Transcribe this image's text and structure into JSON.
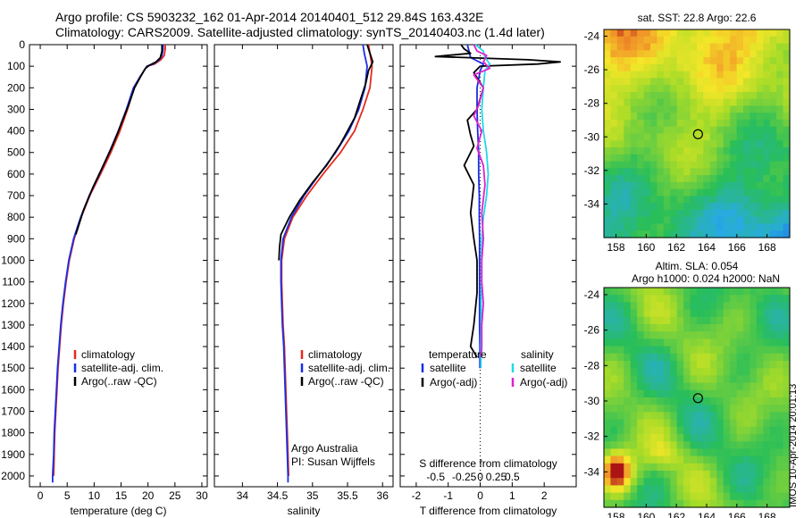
{
  "header": {
    "line1": "Argo profile: CS 5903232_162 01-Apr-2014 20140401_512 29.84S 163.432E",
    "line2": "Climatology: CARS2009. Satellite-adjusted climatology: synTS_20140403.nc (1.4d later)"
  },
  "side_label": "IMOS 10-Apr-2014 20:01:13",
  "colors": {
    "climatology": "#e8281e",
    "satellite": "#1a2ee6",
    "argo": "#000000",
    "sat_salinity": "#22d8e8",
    "argo_salinity_adj": "#e020d0"
  },
  "chart_data": [
    {
      "type": "line",
      "id": "temperature",
      "xlabel": "temperature (deg C)",
      "ylabel": "",
      "xlim": [
        -2,
        31
      ],
      "ylim": [
        2050,
        0
      ],
      "xticks": [
        0,
        5,
        10,
        15,
        20,
        25,
        30
      ],
      "yticks": [
        0,
        100,
        200,
        300,
        400,
        500,
        600,
        700,
        800,
        900,
        1000,
        1100,
        1200,
        1300,
        1400,
        1500,
        1600,
        1700,
        1800,
        1900,
        2000
      ],
      "legend": [
        "climatology",
        "satellite-adj. clim.",
        "Argo(..raw -QC)"
      ],
      "series": [
        {
          "name": "climatology",
          "color": "#e8281e",
          "points": [
            [
              23.2,
              0
            ],
            [
              23.2,
              20
            ],
            [
              23,
              50
            ],
            [
              22.4,
              70
            ],
            [
              21.2,
              90
            ],
            [
              19.8,
              100
            ],
            [
              18.5,
              150
            ],
            [
              17.4,
              200
            ],
            [
              16.2,
              300
            ],
            [
              14.8,
              400
            ],
            [
              13.1,
              500
            ],
            [
              11.2,
              600
            ],
            [
              9.2,
              700
            ],
            [
              7.6,
              800
            ],
            [
              6.3,
              900
            ],
            [
              5.4,
              1000
            ],
            [
              4.8,
              1100
            ],
            [
              4.3,
              1200
            ],
            [
              3.9,
              1300
            ],
            [
              3.6,
              1400
            ],
            [
              3.3,
              1500
            ],
            [
              3.1,
              1600
            ],
            [
              2.9,
              1700
            ],
            [
              2.7,
              1800
            ],
            [
              2.6,
              1900
            ],
            [
              2.5,
              2000
            ]
          ]
        },
        {
          "name": "satellite-adj. clim.",
          "color": "#1a2ee6",
          "points": [
            [
              22.8,
              0
            ],
            [
              22.8,
              20
            ],
            [
              22.6,
              50
            ],
            [
              22.1,
              70
            ],
            [
              21,
              90
            ],
            [
              19.8,
              100
            ],
            [
              18.5,
              150
            ],
            [
              17.3,
              200
            ],
            [
              16,
              300
            ],
            [
              14.5,
              400
            ],
            [
              12.8,
              500
            ],
            [
              11,
              600
            ],
            [
              9.1,
              700
            ],
            [
              7.5,
              800
            ],
            [
              6.2,
              900
            ],
            [
              5.3,
              1000
            ],
            [
              4.7,
              1100
            ],
            [
              4.2,
              1200
            ],
            [
              3.8,
              1300
            ],
            [
              3.5,
              1400
            ],
            [
              3.2,
              1500
            ],
            [
              3,
              1600
            ],
            [
              2.8,
              1700
            ],
            [
              2.6,
              1800
            ],
            [
              2.5,
              1900
            ],
            [
              2.3,
              2000
            ],
            [
              2.3,
              2030
            ]
          ]
        },
        {
          "name": "Argo(..raw -QC)",
          "color": "#000000",
          "points": [
            [
              22.6,
              0
            ],
            [
              22.6,
              30
            ],
            [
              22.3,
              60
            ],
            [
              21.5,
              80
            ],
            [
              20.3,
              95
            ],
            [
              19.5,
              110
            ],
            [
              18.6,
              150
            ],
            [
              17.5,
              200
            ],
            [
              16.4,
              280
            ],
            [
              15.3,
              350
            ],
            [
              14.2,
              420
            ],
            [
              13.2,
              480
            ],
            [
              11.7,
              560
            ],
            [
              9.8,
              660
            ],
            [
              8,
              770
            ],
            [
              6.6,
              880
            ]
          ]
        }
      ]
    },
    {
      "type": "line",
      "id": "salinity",
      "xlabel": "salinity",
      "ylabel": "",
      "xlim": [
        33.6,
        36.15
      ],
      "ylim": [
        2050,
        0
      ],
      "xticks": [
        34,
        34.5,
        35,
        35.5,
        36
      ],
      "legend": [
        "climatology",
        "satellite-adj. clim.",
        "Argo(..raw -QC)"
      ],
      "annotation": [
        "Argo Australia",
        "PI: Susan Wijffels"
      ],
      "series": [
        {
          "name": "climatology",
          "color": "#e8281e",
          "points": [
            [
              35.8,
              0
            ],
            [
              35.82,
              40
            ],
            [
              35.85,
              100
            ],
            [
              35.82,
              200
            ],
            [
              35.72,
              300
            ],
            [
              35.6,
              400
            ],
            [
              35.4,
              500
            ],
            [
              35.15,
              600
            ],
            [
              34.92,
              700
            ],
            [
              34.72,
              800
            ],
            [
              34.6,
              900
            ],
            [
              34.56,
              1000
            ],
            [
              34.56,
              1100
            ],
            [
              34.57,
              1200
            ],
            [
              34.58,
              1300
            ],
            [
              34.6,
              1400
            ],
            [
              34.61,
              1500
            ],
            [
              34.62,
              1600
            ],
            [
              34.63,
              1700
            ],
            [
              34.64,
              1800
            ],
            [
              34.65,
              1900
            ],
            [
              34.66,
              2000
            ]
          ]
        },
        {
          "name": "satellite-adj. clim.",
          "color": "#1a2ee6",
          "points": [
            [
              35.72,
              0
            ],
            [
              35.74,
              40
            ],
            [
              35.78,
              100
            ],
            [
              35.75,
              200
            ],
            [
              35.66,
              300
            ],
            [
              35.52,
              400
            ],
            [
              35.33,
              500
            ],
            [
              35.1,
              600
            ],
            [
              34.88,
              700
            ],
            [
              34.7,
              800
            ],
            [
              34.58,
              900
            ],
            [
              34.55,
              1000
            ],
            [
              34.55,
              1100
            ],
            [
              34.56,
              1200
            ],
            [
              34.57,
              1300
            ],
            [
              34.59,
              1400
            ],
            [
              34.6,
              1500
            ],
            [
              34.61,
              1600
            ],
            [
              34.62,
              1700
            ],
            [
              34.63,
              1800
            ],
            [
              34.64,
              1900
            ],
            [
              34.65,
              2000
            ],
            [
              34.65,
              2030
            ]
          ]
        },
        {
          "name": "Argo(..raw -QC)",
          "color": "#000000",
          "points": [
            [
              35.78,
              0
            ],
            [
              35.82,
              40
            ],
            [
              35.86,
              80
            ],
            [
              35.8,
              120
            ],
            [
              35.76,
              180
            ],
            [
              35.68,
              260
            ],
            [
              35.6,
              340
            ],
            [
              35.4,
              460
            ],
            [
              35.2,
              560
            ],
            [
              35,
              640
            ],
            [
              34.82,
              720
            ],
            [
              34.67,
              800
            ],
            [
              34.55,
              880
            ],
            [
              34.53,
              940
            ],
            [
              34.52,
              1000
            ]
          ]
        }
      ]
    },
    {
      "type": "line",
      "id": "difference",
      "xlabel": "T difference from climatology",
      "x2label": "S difference from climatology",
      "ylabel": "",
      "xlim": [
        -2.5,
        3
      ],
      "ylim": [
        2050,
        0
      ],
      "xticks": [
        -2,
        -1,
        0,
        1,
        2
      ],
      "x2ticks": [
        "-0.5",
        "-0.25",
        "0",
        "0.25",
        "0.5"
      ],
      "legend_headers": [
        "temperature",
        "salinity"
      ],
      "legend": [
        "satellite",
        "Argo(-adj)",
        "satellite",
        "Argo(-adj)"
      ],
      "series": [
        {
          "name": "T satellite",
          "color": "#1a2ee6",
          "points": [
            [
              -0.4,
              0
            ],
            [
              -0.35,
              30
            ],
            [
              -0.3,
              60
            ],
            [
              0.1,
              90
            ],
            [
              0,
              120
            ],
            [
              -0.1,
              200
            ],
            [
              -0.1,
              300
            ],
            [
              -0.08,
              400
            ],
            [
              -0.05,
              500
            ],
            [
              -0.05,
              600
            ],
            [
              -0.03,
              700
            ],
            [
              -0.03,
              800
            ],
            [
              -0.02,
              900
            ],
            [
              -0.02,
              1000
            ],
            [
              -0.02,
              1100
            ],
            [
              -0.02,
              1200
            ],
            [
              -0.02,
              1300
            ],
            [
              -0.01,
              1400
            ],
            [
              -0.01,
              1500
            ]
          ]
        },
        {
          "name": "T Argo(-adj)",
          "color": "#000000",
          "points": [
            [
              -0.6,
              0
            ],
            [
              -0.5,
              20
            ],
            [
              -0.3,
              40
            ],
            [
              -1.4,
              55
            ],
            [
              1.5,
              70
            ],
            [
              2.5,
              80
            ],
            [
              1.8,
              90
            ],
            [
              0,
              100
            ],
            [
              -0.2,
              130
            ],
            [
              0.1,
              200
            ],
            [
              -0.1,
              300
            ],
            [
              -0.4,
              350
            ],
            [
              -0.3,
              420
            ],
            [
              -0.2,
              470
            ],
            [
              -0.5,
              560
            ],
            [
              -0.2,
              650
            ],
            [
              -0.3,
              780
            ],
            [
              -0.2,
              900
            ],
            [
              -0.1,
              1000
            ],
            [
              -0.1,
              1150
            ],
            [
              -0.2,
              1300
            ],
            [
              -0.3,
              1400
            ],
            [
              -0.1,
              1450
            ]
          ]
        },
        {
          "name": "S satellite",
          "color": "#22d8e8",
          "points": [
            [
              -0.15,
              0
            ],
            [
              0.1,
              30
            ],
            [
              0.15,
              60
            ],
            [
              0.3,
              90
            ],
            [
              0.15,
              120
            ],
            [
              0.1,
              200
            ],
            [
              0.05,
              300
            ],
            [
              0.1,
              400
            ],
            [
              0.2,
              500
            ],
            [
              0.25,
              600
            ],
            [
              0.2,
              700
            ],
            [
              0.1,
              800
            ],
            [
              0.05,
              900
            ],
            [
              0.04,
              1000
            ],
            [
              0.04,
              1100
            ],
            [
              0.03,
              1200
            ],
            [
              0.03,
              1300
            ],
            [
              0.02,
              1400
            ],
            [
              0.02,
              1500
            ]
          ]
        },
        {
          "name": "S Argo(-adj)",
          "color": "#e020d0",
          "points": [
            [
              -0.2,
              0
            ],
            [
              -0.1,
              30
            ],
            [
              0.2,
              50
            ],
            [
              0.1,
              80
            ],
            [
              0.3,
              110
            ],
            [
              -0.2,
              140
            ],
            [
              0.1,
              200
            ],
            [
              -0.05,
              280
            ],
            [
              -0.2,
              330
            ],
            [
              0.05,
              400
            ],
            [
              -0.1,
              480
            ],
            [
              0.1,
              560
            ],
            [
              0.15,
              650
            ],
            [
              0.05,
              780
            ],
            [
              0.1,
              900
            ],
            [
              0.05,
              1000
            ],
            [
              0.05,
              1100
            ],
            [
              0.1,
              1200
            ],
            [
              0.05,
              1300
            ],
            [
              0.05,
              1400
            ],
            [
              0.03,
              1450
            ]
          ]
        }
      ]
    },
    {
      "type": "heatmap",
      "id": "sst_map",
      "title": "sat. SST: 22.8 Argo: 22.6",
      "xlim": [
        157.2,
        169.5
      ],
      "ylim": [
        -36,
        -23.6
      ],
      "xticks": [
        158,
        160,
        162,
        164,
        166,
        168
      ],
      "yticks": [
        -24,
        -26,
        -28,
        -30,
        -32,
        -34
      ],
      "marker": [
        163.43,
        -29.84
      ]
    },
    {
      "type": "heatmap",
      "id": "sla_map",
      "title_lines": [
        "Altim. SLA: 0.054",
        "Argo h1000: 0.024 h2000: NaN"
      ],
      "xlim": [
        157.2,
        169.5
      ],
      "ylim": [
        -36,
        -23.6
      ],
      "xticks": [
        158,
        160,
        162,
        164,
        166,
        168
      ],
      "yticks": [
        -24,
        -26,
        -28,
        -30,
        -32,
        -34
      ],
      "marker": [
        163.43,
        -29.84
      ]
    }
  ]
}
